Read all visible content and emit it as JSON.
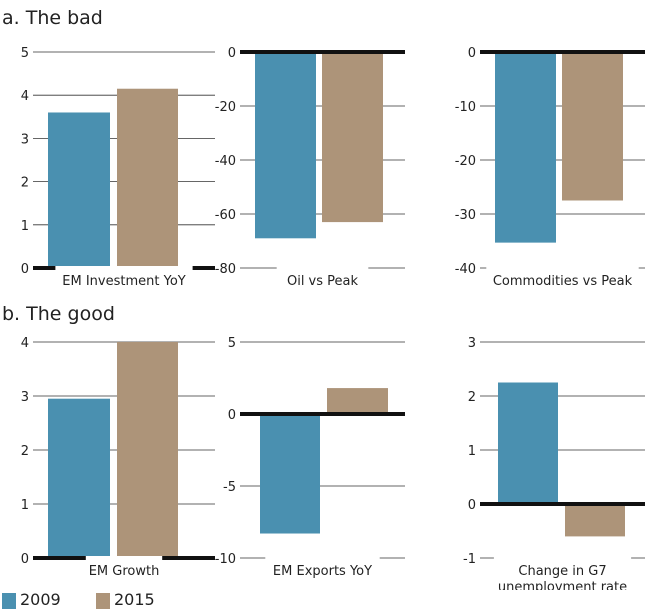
{
  "colors": {
    "2009": "#4a90b0",
    "2015": "#ad9479",
    "axis": "#111111",
    "grid": "#333333",
    "text": "#222222"
  },
  "section_titles": {
    "bad": "a. The bad",
    "good": "b. The good"
  },
  "legend": [
    {
      "label": "2009",
      "color": "#4a90b0"
    },
    {
      "label": "2015",
      "color": "#ad9479"
    }
  ],
  "chart_data": [
    {
      "type": "bar",
      "panel": "a",
      "xlabel": [
        "EM Investment YoY"
      ],
      "categories": [
        "2009",
        "2015"
      ],
      "values": [
        3.6,
        4.15
      ],
      "ylim": [
        0,
        5
      ],
      "yticks": [
        0,
        1,
        2,
        3,
        4,
        5
      ],
      "zero_axis": 0
    },
    {
      "type": "bar",
      "panel": "a",
      "xlabel": [
        "Oil vs Peak"
      ],
      "categories": [
        "2009",
        "2015"
      ],
      "values": [
        -69,
        -63
      ],
      "ylim": [
        -80,
        0
      ],
      "yticks": [
        -80,
        -60,
        -40,
        -20,
        0
      ],
      "zero_axis": 0
    },
    {
      "type": "bar",
      "panel": "a",
      "xlabel": [
        "Commodities vs Peak"
      ],
      "categories": [
        "2009",
        "2015"
      ],
      "values": [
        -35.3,
        -27.5
      ],
      "ylim": [
        -40,
        0
      ],
      "yticks": [
        -40,
        -30,
        -20,
        -10,
        0
      ],
      "zero_axis": 0
    },
    {
      "type": "bar",
      "panel": "b",
      "xlabel": [
        "EM Growth"
      ],
      "categories": [
        "2009",
        "2015"
      ],
      "values": [
        2.95,
        4.0
      ],
      "ylim": [
        0,
        4
      ],
      "yticks": [
        0,
        1,
        2,
        3,
        4
      ],
      "zero_axis": 0
    },
    {
      "type": "bar",
      "panel": "b",
      "xlabel": [
        "EM Exports YoY"
      ],
      "categories": [
        "2009",
        "2015"
      ],
      "values": [
        -8.3,
        1.8
      ],
      "ylim": [
        -10,
        5
      ],
      "yticks": [
        -10,
        -5,
        0,
        5
      ],
      "zero_axis": 0
    },
    {
      "type": "bar",
      "panel": "b",
      "xlabel": [
        "Change in G7",
        "unemployment rate"
      ],
      "categories": [
        "2009",
        "2015"
      ],
      "values": [
        2.25,
        -0.6
      ],
      "ylim": [
        -1,
        3
      ],
      "yticks": [
        -1,
        0,
        1,
        2,
        3
      ],
      "zero_axis": 0
    }
  ]
}
